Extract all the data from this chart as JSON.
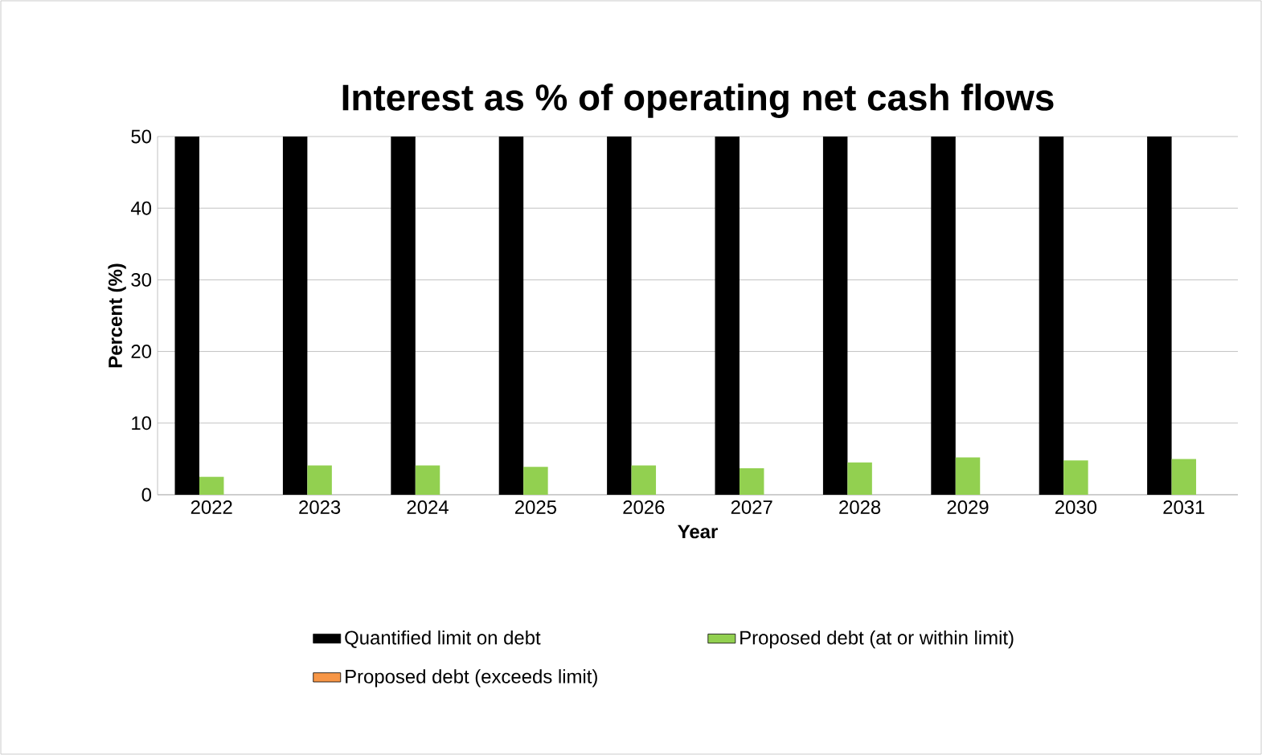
{
  "chart_data": {
    "type": "bar",
    "title": "Interest as % of operating net cash flows",
    "xlabel": "Year",
    "ylabel": "Percent (%)",
    "categories": [
      "2022",
      "2023",
      "2024",
      "2025",
      "2026",
      "2027",
      "2028",
      "2029",
      "2030",
      "2031"
    ],
    "series": [
      {
        "name": "Quantified limit on debt",
        "color": "#000000",
        "values": [
          50,
          50,
          50,
          50,
          50,
          50,
          50,
          50,
          50,
          50
        ]
      },
      {
        "name": "Proposed debt (at or within limit)",
        "color": "#92d050",
        "values": [
          2.5,
          4.1,
          4.1,
          3.9,
          4.1,
          3.7,
          4.5,
          5.2,
          4.8,
          5.0
        ]
      },
      {
        "name": "Proposed debt (exceeds limit)",
        "color": "#f79646",
        "values": [
          null,
          null,
          null,
          null,
          null,
          null,
          null,
          null,
          null,
          null
        ]
      }
    ],
    "ylim": [
      0,
      50
    ],
    "yticks": [
      0,
      10,
      20,
      30,
      40,
      50
    ],
    "grid": "y",
    "legend": "bottom"
  }
}
